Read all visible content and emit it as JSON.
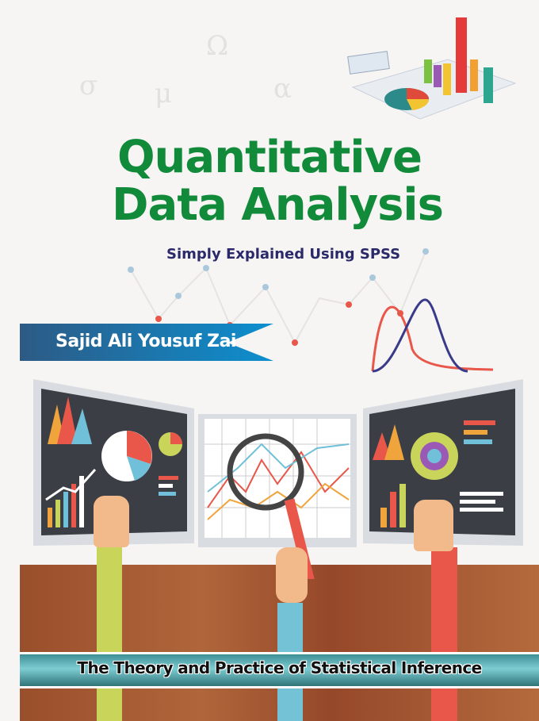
{
  "cover": {
    "greek_symbols": [
      "σ",
      "μ",
      "Ω",
      "α"
    ],
    "title_line1": "Quantitative",
    "title_line2": "Data Analysis",
    "subtitle": "Simply Explained Using SPSS",
    "author": "Sajid Ali Yousuf Zai",
    "banner": "The Theory and Practice of Statistical Inference"
  },
  "colors": {
    "title": "#118a3a",
    "subtitle": "#2a2a6a",
    "author_ribbon": "#1f5f93",
    "banner": "#5bb3b9",
    "floor": "#a65a32",
    "arm_left": "#c8d45a",
    "arm_center": "#74c2d6",
    "arm_right": "#e8574a"
  }
}
